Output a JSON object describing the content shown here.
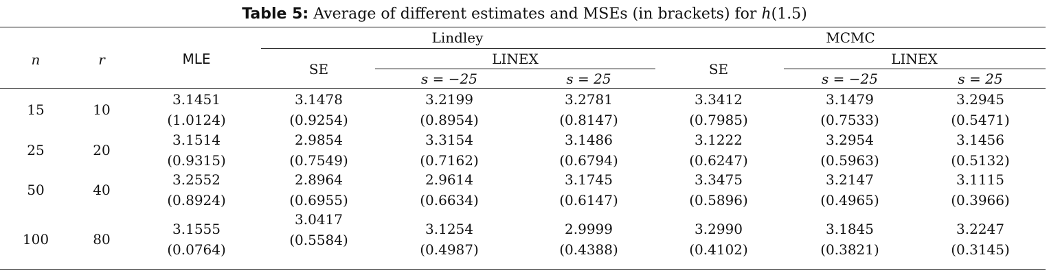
{
  "caption": {
    "label": "Table 5:",
    "text": " Average of different estimates and MSEs (in brackets) for ",
    "func": "h",
    "arg": "(1.5)"
  },
  "headers": {
    "n": "n",
    "r": "r",
    "mle": "MLE",
    "lindley": "Lindley",
    "mcmc": "MCMC",
    "se": "SE",
    "linex": "LINEX",
    "s_neg": "s = −25",
    "s_pos": "s = 25"
  },
  "rows": [
    {
      "n": "15",
      "r": "10",
      "values": [
        "3.1451",
        "3.1478",
        "3.2199",
        "3.2781",
        "3.3412",
        "3.1479",
        "3.2945"
      ],
      "mse": [
        "(1.0124)",
        "(0.9254)",
        "(0.8954)",
        "(0.8147)",
        "(0.7985)",
        "(0.7533)",
        "(0.5471)"
      ]
    },
    {
      "n": "25",
      "r": "20",
      "values": [
        "3.1514",
        "2.9854",
        "3.3154",
        "3.1486",
        "3.1222",
        "3.2954",
        "3.1456"
      ],
      "mse": [
        "(0.9315)",
        "(0.7549)",
        "(0.7162)",
        "(0.6794)",
        "(0.6247)",
        "(0.5963)",
        "(0.5132)"
      ]
    },
    {
      "n": "50",
      "r": "40",
      "values": [
        "3.2552",
        "2.8964",
        "2.9614",
        "3.1745",
        "3.3475",
        "3.2147",
        "3.1115"
      ],
      "mse": [
        "(0.8924)",
        "(0.6955)",
        "(0.6634)",
        "(0.6147)",
        "(0.5896)",
        "(0.4965)",
        "(0.3966)"
      ]
    },
    {
      "n": "100",
      "r": "80",
      "values": [
        "3.1555",
        "3.0417",
        "3.1254",
        "2.9999",
        "3.2990",
        "3.1845",
        "3.2247"
      ],
      "mse": [
        "(0.0764)",
        "(0.5584)",
        "(0.4987)",
        "(0.4388)",
        "(0.4102)",
        "(0.3821)",
        "(0.3145)"
      ]
    }
  ]
}
